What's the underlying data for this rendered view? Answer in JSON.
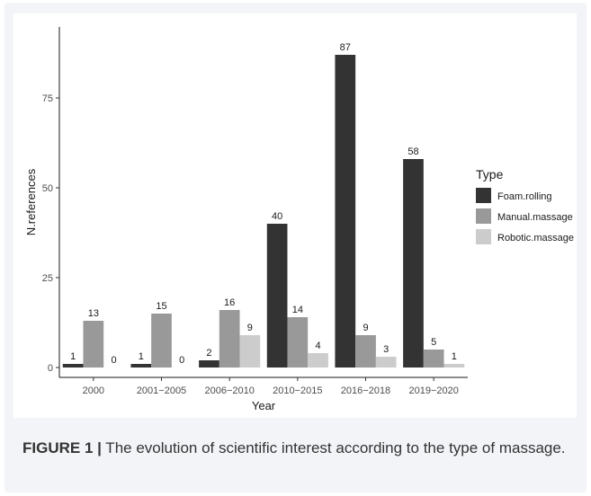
{
  "figure": {
    "caption_label": "FIGURE 1 |",
    "caption_text": " The evolution of scientific interest according to the type of massage."
  },
  "chart_data": {
    "type": "bar",
    "xlabel": "Year",
    "ylabel": "N.references",
    "ylim": [
      0,
      90
    ],
    "yticks": [
      0,
      25,
      50,
      75
    ],
    "categories": [
      "2000",
      "2001−2005",
      "2006−2010",
      "2010−2015",
      "2016−2018",
      "2019−2020"
    ],
    "legend_title": "Type",
    "legend_position": "right",
    "grid": false,
    "series": [
      {
        "name": "Foam.rolling",
        "color": "#333333",
        "values": [
          1,
          1,
          2,
          40,
          87,
          58
        ]
      },
      {
        "name": "Manual.massage",
        "color": "#999999",
        "values": [
          13,
          15,
          16,
          14,
          9,
          5
        ]
      },
      {
        "name": "Robotic.massage",
        "color": "#cccccc",
        "values": [
          0,
          0,
          9,
          4,
          3,
          1
        ]
      }
    ]
  }
}
